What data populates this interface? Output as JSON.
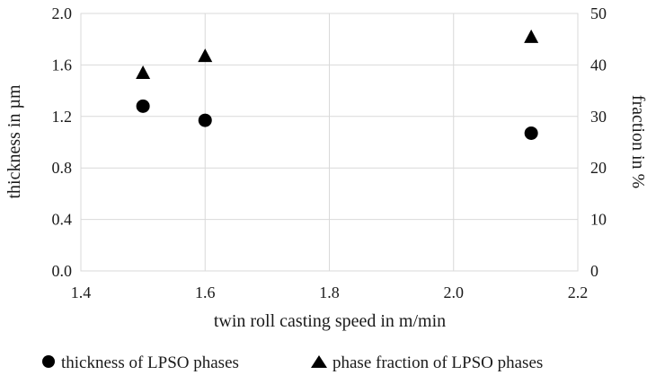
{
  "chart_data": {
    "type": "scatter",
    "xlabel": "twin roll casting speed in m/min",
    "ylabel": "thickness in µm",
    "y2label": "fraction in %",
    "xlim": [
      1.4,
      2.2
    ],
    "ylim": [
      0.0,
      2.0
    ],
    "y2lim": [
      0,
      50
    ],
    "x_ticks": [
      "1.4",
      "1.6",
      "1.8",
      "2.0",
      "2.2"
    ],
    "y_ticks": [
      "0.0",
      "0.4",
      "0.8",
      "1.2",
      "1.6",
      "2.0"
    ],
    "y2_ticks": [
      "0",
      "10",
      "20",
      "30",
      "40",
      "50"
    ],
    "grid": true,
    "legend_position": "bottom",
    "series": [
      {
        "name": "thickness of LPSO phases",
        "axis": "left",
        "marker": "circle",
        "x": [
          1.5,
          1.6,
          2.125
        ],
        "y": [
          1.28,
          1.17,
          1.07
        ]
      },
      {
        "name": "phase fraction of LPSO phases",
        "axis": "right",
        "marker": "triangle",
        "x": [
          1.5,
          1.6,
          2.125
        ],
        "y": [
          38.5,
          41.8,
          45.5
        ]
      }
    ]
  }
}
